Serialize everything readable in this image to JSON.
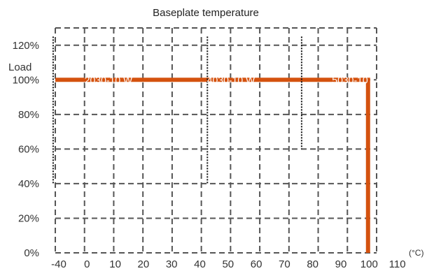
{
  "chart_data": {
    "type": "line",
    "title": "Baseplate temperature",
    "ylabel": "Load",
    "xlabel_unit": "(°C)",
    "x_ticks": [
      "-40",
      "0",
      "10",
      "20",
      "30",
      "40",
      "50",
      "60",
      "70",
      "80",
      "90",
      "100",
      "110"
    ],
    "y_ticks": [
      "0%",
      "20%",
      "40%",
      "60%",
      "80%",
      "100%",
      "120%"
    ],
    "xlim": [
      -40,
      110
    ],
    "ylim": [
      0,
      120
    ],
    "grid": true,
    "series": [
      {
        "color": "#d4520f",
        "points": [
          {
            "x": -40,
            "y": 100
          },
          {
            "x": 106,
            "y": 100
          },
          {
            "x": 106,
            "y": 0
          }
        ]
      }
    ],
    "markers": [
      {
        "x": -41,
        "y_from": 40,
        "y_to": 125
      },
      {
        "x": 31,
        "y_from": 40,
        "y_to": 125
      },
      {
        "x": 75,
        "y_from": 60,
        "y_to": 125
      }
    ],
    "mark_labels": [
      "2030-10 W",
      "4030-10 W",
      "5030-10"
    ]
  },
  "colors": {
    "series": "#d4520f",
    "grid": "#555555",
    "text": "#333333"
  }
}
